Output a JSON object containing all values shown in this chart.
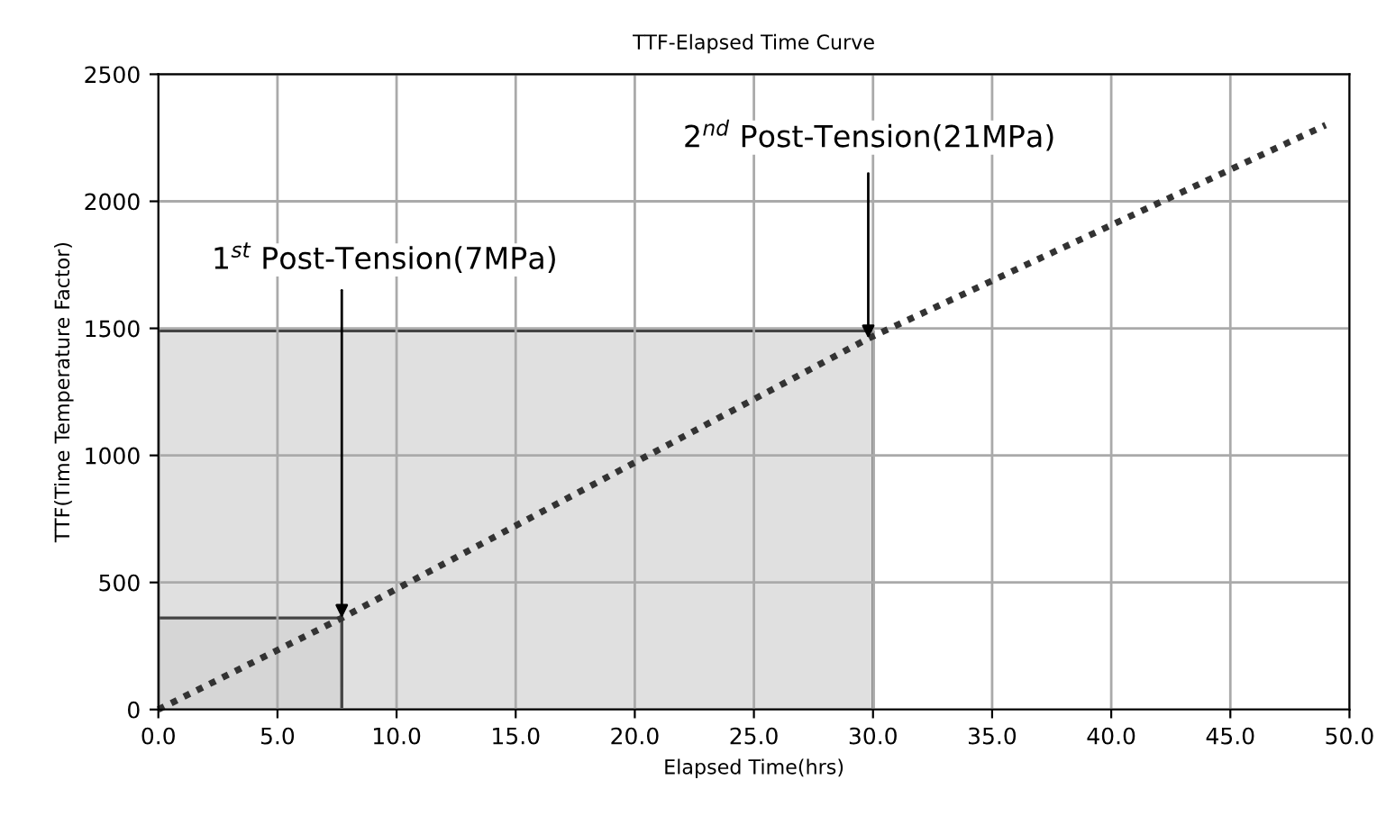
{
  "chart_data": {
    "type": "line",
    "title": "TTF-Elapsed Time Curve",
    "xlabel": "Elapsed Time(hrs)",
    "ylabel": "TTF(Time Temperature Factor)",
    "xlim": [
      0,
      50
    ],
    "xticks": [
      {
        "value": 0,
        "label": "0.0"
      },
      {
        "value": 5,
        "label": "5.0"
      },
      {
        "value": 10,
        "label": "10.0"
      },
      {
        "value": 15,
        "label": "15.0"
      },
      {
        "value": 20,
        "label": "20.0"
      },
      {
        "value": 25,
        "label": "25.0"
      },
      {
        "value": 30,
        "label": "30.0"
      },
      {
        "value": 35,
        "label": "35.0"
      },
      {
        "value": 40,
        "label": "40.0"
      },
      {
        "value": 45,
        "label": "45.0"
      },
      {
        "value": 50,
        "label": "50.0"
      }
    ],
    "ylim": [
      0,
      2500
    ],
    "yticks": [
      0,
      500,
      1000,
      1500,
      2000,
      2500
    ],
    "grid": true,
    "line_style": "dotted",
    "series": [
      {
        "type": "area",
        "color": "#e0e0e0",
        "x": [
          0,
          30
        ],
        "values": [
          1490,
          1490
        ]
      },
      {
        "type": "area",
        "color": "#d6d6d6",
        "x": [
          0,
          7.7
        ],
        "values": [
          360,
          360
        ]
      },
      {
        "color": "#333333",
        "x": [
          0,
          7.7,
          29.8,
          49
        ],
        "values": [
          0,
          360,
          1460,
          2300
        ]
      }
    ],
    "annotations": [
      {
        "text": "1$^{st}$ Post-Tension(7MPa)",
        "x": 7.7,
        "y": 360
      },
      {
        "text": "2$^{nd}$ Post-Tension(21MPa)",
        "x": 29.8,
        "y": 1460
      }
    ]
  }
}
